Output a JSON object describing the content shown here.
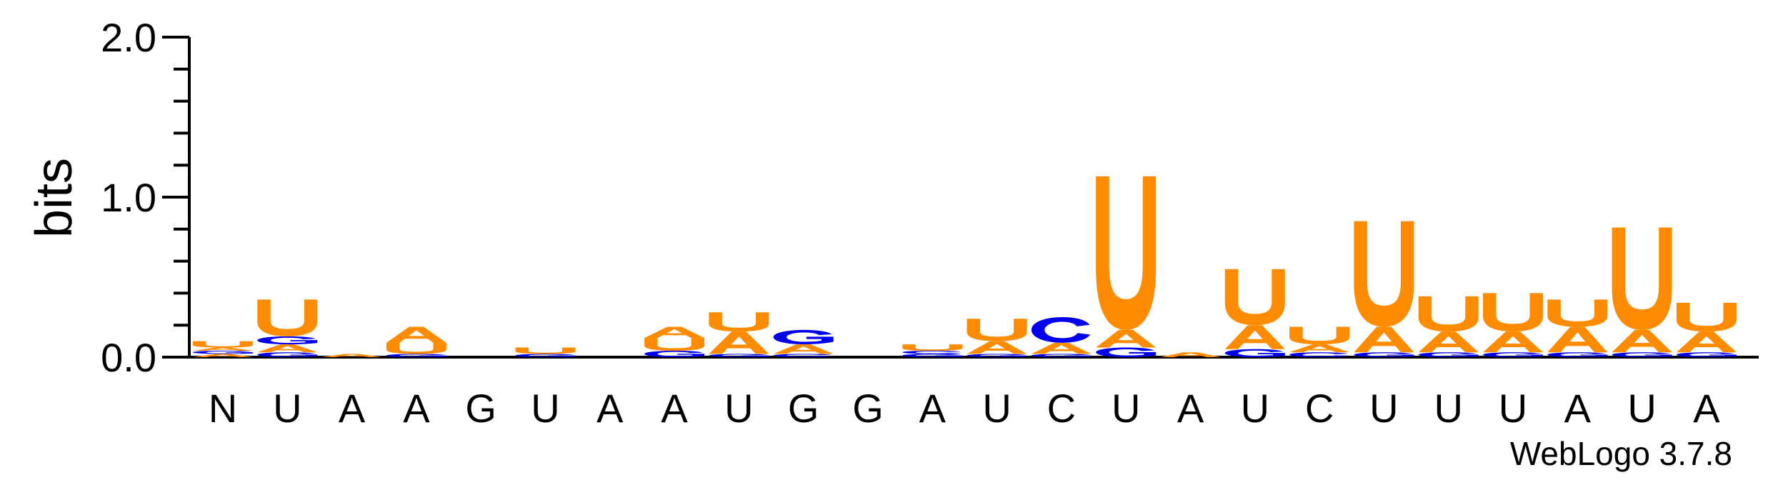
{
  "chart_data": {
    "type": "sequence-logo",
    "ylabel": "bits",
    "ylim": [
      0,
      2
    ],
    "yticks": [
      "0.0",
      "1.0",
      "2.0"
    ],
    "credit": "WebLogo 3.7.8",
    "colors": {
      "A": "#ff8c00",
      "U": "#ff8c00",
      "G": "#0000ee",
      "C": "#0000ee"
    },
    "positions": [
      {
        "label": "N",
        "stack": [
          {
            "letter": "A",
            "bits": 0.02
          },
          {
            "letter": "G",
            "bits": 0.02
          },
          {
            "letter": "A",
            "bits": 0.02
          },
          {
            "letter": "U",
            "bits": 0.04
          }
        ]
      },
      {
        "label": "U",
        "stack": [
          {
            "letter": "G",
            "bits": 0.03
          },
          {
            "letter": "A",
            "bits": 0.05
          },
          {
            "letter": "G",
            "bits": 0.05
          },
          {
            "letter": "U",
            "bits": 0.23
          }
        ]
      },
      {
        "label": "A",
        "stack": [
          {
            "letter": "A",
            "bits": 0.02
          }
        ]
      },
      {
        "label": "A",
        "stack": [
          {
            "letter": "G",
            "bits": 0.02
          },
          {
            "letter": "U",
            "bits": 0.07
          },
          {
            "letter": "A",
            "bits": 0.1
          }
        ]
      },
      {
        "label": "G",
        "stack": []
      },
      {
        "label": "U",
        "stack": [
          {
            "letter": "G",
            "bits": 0.02
          },
          {
            "letter": "U",
            "bits": 0.04
          }
        ]
      },
      {
        "label": "A",
        "stack": []
      },
      {
        "label": "A",
        "stack": [
          {
            "letter": "G",
            "bits": 0.04
          },
          {
            "letter": "U",
            "bits": 0.08
          },
          {
            "letter": "A",
            "bits": 0.07
          }
        ]
      },
      {
        "label": "U",
        "stack": [
          {
            "letter": "G",
            "bits": 0.02
          },
          {
            "letter": "A",
            "bits": 0.14
          },
          {
            "letter": "U",
            "bits": 0.12
          }
        ]
      },
      {
        "label": "G",
        "stack": [
          {
            "letter": "C",
            "bits": 0.02
          },
          {
            "letter": "A",
            "bits": 0.06
          },
          {
            "letter": "G",
            "bits": 0.09
          }
        ]
      },
      {
        "label": "G",
        "stack": []
      },
      {
        "label": "A",
        "stack": [
          {
            "letter": "G",
            "bits": 0.02
          },
          {
            "letter": "C",
            "bits": 0.02
          },
          {
            "letter": "U",
            "bits": 0.04
          }
        ]
      },
      {
        "label": "U",
        "stack": [
          {
            "letter": "G",
            "bits": 0.02
          },
          {
            "letter": "A",
            "bits": 0.08
          },
          {
            "letter": "U",
            "bits": 0.14
          }
        ]
      },
      {
        "label": "C",
        "stack": [
          {
            "letter": "G",
            "bits": 0.02
          },
          {
            "letter": "A",
            "bits": 0.07
          },
          {
            "letter": "C",
            "bits": 0.16
          }
        ]
      },
      {
        "label": "U",
        "stack": [
          {
            "letter": "G",
            "bits": 0.06
          },
          {
            "letter": "A",
            "bits": 0.11
          },
          {
            "letter": "U",
            "bits": 0.96
          }
        ]
      },
      {
        "label": "A",
        "stack": [
          {
            "letter": "A",
            "bits": 0.03
          }
        ]
      },
      {
        "label": "U",
        "stack": [
          {
            "letter": "G",
            "bits": 0.05
          },
          {
            "letter": "A",
            "bits": 0.15
          },
          {
            "letter": "U",
            "bits": 0.35
          }
        ]
      },
      {
        "label": "C",
        "stack": [
          {
            "letter": "C",
            "bits": 0.03
          },
          {
            "letter": "A",
            "bits": 0.05
          },
          {
            "letter": "U",
            "bits": 0.11
          }
        ]
      },
      {
        "label": "U",
        "stack": [
          {
            "letter": "G",
            "bits": 0.03
          },
          {
            "letter": "A",
            "bits": 0.16
          },
          {
            "letter": "U",
            "bits": 0.66
          }
        ]
      },
      {
        "label": "U",
        "stack": [
          {
            "letter": "G",
            "bits": 0.03
          },
          {
            "letter": "A",
            "bits": 0.13
          },
          {
            "letter": "U",
            "bits": 0.22
          }
        ]
      },
      {
        "label": "U",
        "stack": [
          {
            "letter": "G",
            "bits": 0.03
          },
          {
            "letter": "A",
            "bits": 0.13
          },
          {
            "letter": "U",
            "bits": 0.24
          }
        ]
      },
      {
        "label": "A",
        "stack": [
          {
            "letter": "G",
            "bits": 0.03
          },
          {
            "letter": "A",
            "bits": 0.16
          },
          {
            "letter": "U",
            "bits": 0.17
          }
        ]
      },
      {
        "label": "U",
        "stack": [
          {
            "letter": "G",
            "bits": 0.03
          },
          {
            "letter": "A",
            "bits": 0.14
          },
          {
            "letter": "U",
            "bits": 0.64
          }
        ]
      },
      {
        "label": "A",
        "stack": [
          {
            "letter": "G",
            "bits": 0.03
          },
          {
            "letter": "A",
            "bits": 0.13
          },
          {
            "letter": "U",
            "bits": 0.18
          }
        ]
      }
    ]
  }
}
